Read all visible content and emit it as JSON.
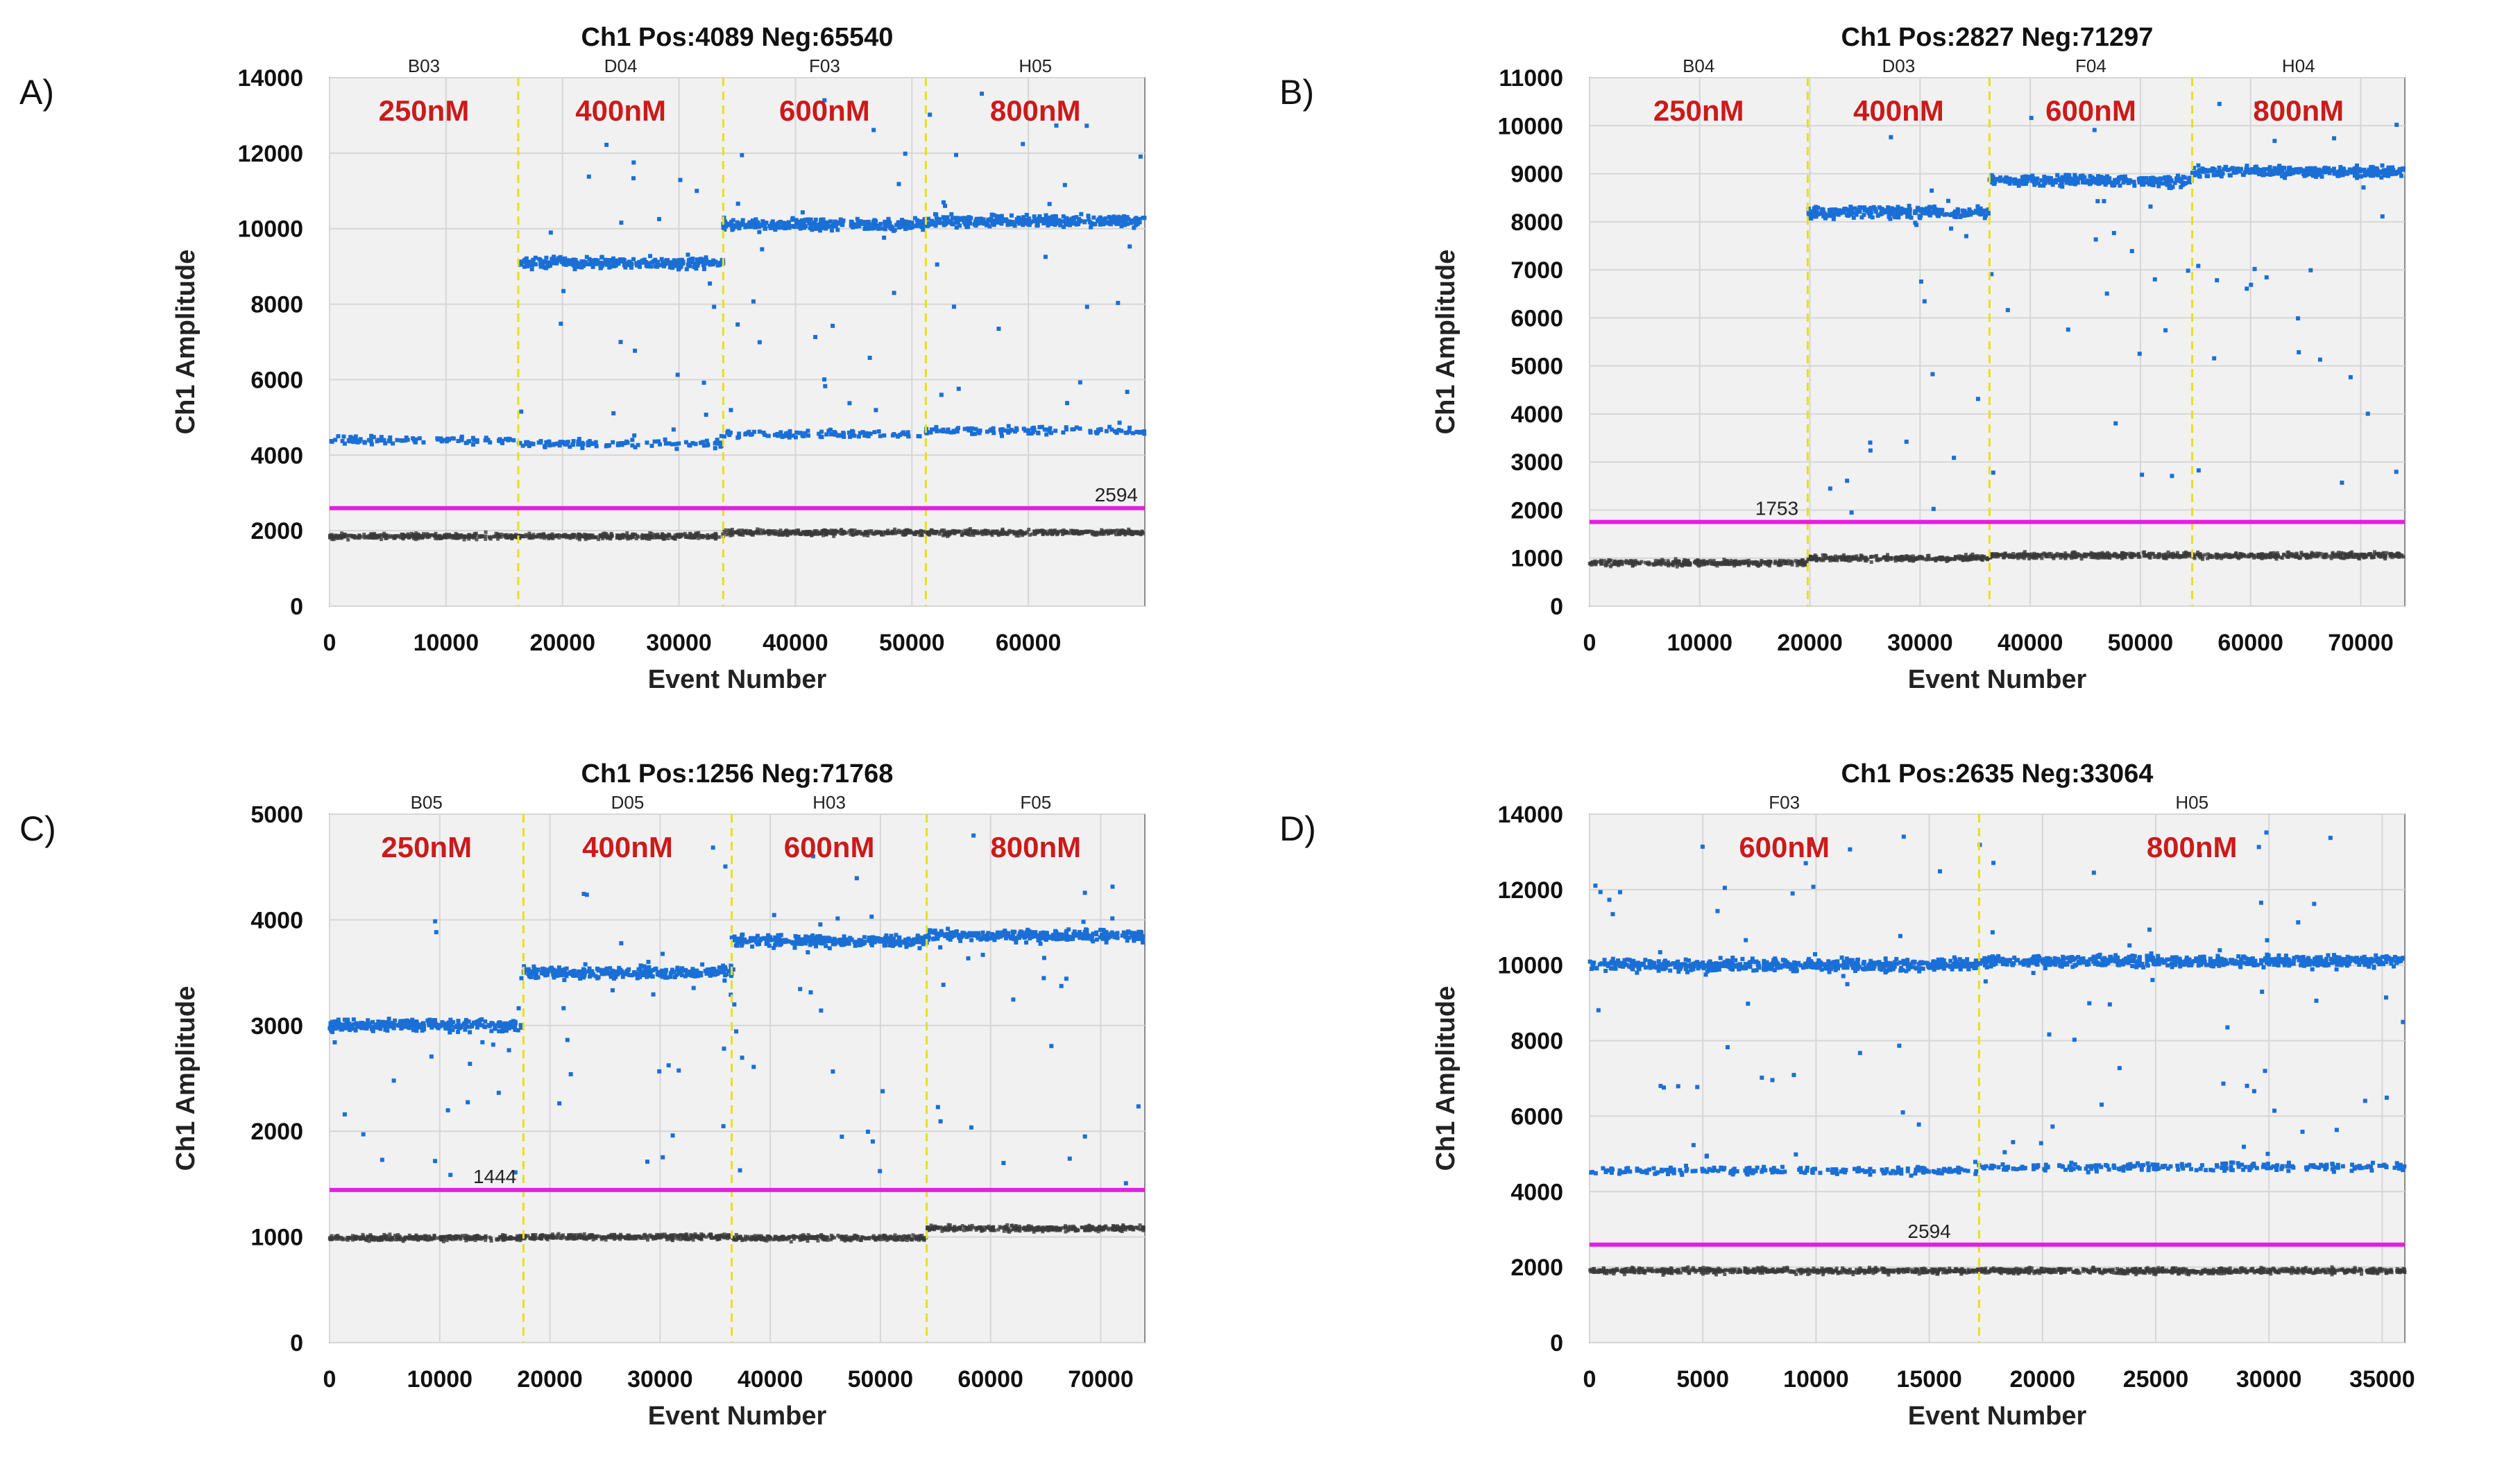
{
  "chart_data": [
    {
      "panel_label": "A)",
      "type": "scatter",
      "title": "Ch1 Pos:4089 Neg:65540",
      "xlabel": "Event Number",
      "ylabel": "Ch1 Amplitude",
      "xlim": [
        0,
        70000
      ],
      "ylim": [
        0,
        14000
      ],
      "xticks": [
        0,
        10000,
        20000,
        30000,
        40000,
        50000,
        60000
      ],
      "yticks": [
        0,
        2000,
        4000,
        6000,
        8000,
        10000,
        12000,
        14000
      ],
      "threshold": 2594,
      "threshold_label": "2594",
      "threshold_label_anchor": "end",
      "threshold_color": "#e020e0",
      "segments": [
        {
          "well": "B03",
          "conc": "250nM",
          "x_start": 0,
          "x_end": 16200,
          "neg": 1850,
          "pos_low": 4400,
          "pos_high": null
        },
        {
          "well": "D04",
          "conc": "400nM",
          "x_start": 16200,
          "x_end": 33800,
          "neg": 1850,
          "pos_low": 4300,
          "pos_high": 9100
        },
        {
          "well": "F03",
          "conc": "600nM",
          "x_start": 33800,
          "x_end": 51200,
          "neg": 1950,
          "pos_low": 4550,
          "pos_high": 10100
        },
        {
          "well": "H05",
          "conc": "800nM",
          "x_start": 51200,
          "x_end": 70000,
          "neg": 1950,
          "pos_low": 4650,
          "pos_high": 10200
        }
      ],
      "colors": {
        "positive": "#1a6fd6",
        "negative": "#3a3a3a"
      }
    },
    {
      "panel_label": "B)",
      "type": "scatter",
      "title": "Ch1 Pos:2827 Neg:71297",
      "xlabel": "Event Number",
      "ylabel": "Ch1 Amplitude",
      "xlim": [
        0,
        74000
      ],
      "ylim": [
        0,
        11000
      ],
      "xticks": [
        0,
        10000,
        20000,
        30000,
        40000,
        50000,
        60000,
        70000
      ],
      "yticks": [
        0,
        1000,
        2000,
        3000,
        4000,
        5000,
        6000,
        7000,
        8000,
        9000,
        10000,
        11000
      ],
      "threshold": 1753,
      "threshold_label": "1753",
      "threshold_label_anchor": "middle",
      "threshold_label_x": 17000,
      "threshold_color": "#e020e0",
      "segments": [
        {
          "well": "B04",
          "conc": "250nM",
          "x_start": 0,
          "x_end": 19800,
          "neg": 900,
          "pos_low": null,
          "pos_high": null
        },
        {
          "well": "D03",
          "conc": "400nM",
          "x_start": 19800,
          "x_end": 36300,
          "neg": 1000,
          "pos_low": null,
          "pos_high": 8200
        },
        {
          "well": "F04",
          "conc": "600nM",
          "x_start": 36300,
          "x_end": 54700,
          "neg": 1050,
          "pos_low": null,
          "pos_high": 8850
        },
        {
          "well": "H04",
          "conc": "800nM",
          "x_start": 54700,
          "x_end": 74000,
          "neg": 1050,
          "pos_low": null,
          "pos_high": 9050
        }
      ],
      "colors": {
        "positive": "#1a6fd6",
        "negative": "#3a3a3a"
      }
    },
    {
      "panel_label": "C)",
      "type": "scatter",
      "title": "Ch1 Pos:1256 Neg:71768",
      "xlabel": "Event Number",
      "ylabel": "Ch1 Amplitude",
      "xlim": [
        0,
        74000
      ],
      "ylim": [
        0,
        5000
      ],
      "xticks": [
        0,
        10000,
        20000,
        30000,
        40000,
        50000,
        60000,
        70000
      ],
      "yticks": [
        0,
        1000,
        2000,
        3000,
        4000,
        5000
      ],
      "threshold": 1444,
      "threshold_label": "1444",
      "threshold_label_anchor": "middle",
      "threshold_label_x": 15000,
      "threshold_color": "#e020e0",
      "segments": [
        {
          "well": "B05",
          "conc": "250nM",
          "x_start": 0,
          "x_end": 17600,
          "neg": 990,
          "pos_low": null,
          "pos_high": 3000
        },
        {
          "well": "D05",
          "conc": "400nM",
          "x_start": 17600,
          "x_end": 36500,
          "neg": 1000,
          "pos_low": null,
          "pos_high": 3500
        },
        {
          "well": "H03",
          "conc": "600nM",
          "x_start": 36500,
          "x_end": 54200,
          "neg": 990,
          "pos_low": null,
          "pos_high": 3800
        },
        {
          "well": "F05",
          "conc": "800nM",
          "x_start": 54200,
          "x_end": 74000,
          "neg": 1080,
          "pos_low": null,
          "pos_high": 3850
        }
      ],
      "colors": {
        "positive": "#1a6fd6",
        "negative": "#3a3a3a"
      }
    },
    {
      "panel_label": "D)",
      "type": "scatter",
      "title": "Ch1 Pos:2635 Neg:33064",
      "xlabel": "Event Number",
      "ylabel": "Ch1 Amplitude",
      "xlim": [
        0,
        36000
      ],
      "ylim": [
        0,
        14000
      ],
      "xticks": [
        0,
        5000,
        10000,
        15000,
        20000,
        25000,
        30000,
        35000
      ],
      "yticks": [
        0,
        2000,
        4000,
        6000,
        8000,
        10000,
        12000,
        14000
      ],
      "threshold": 2594,
      "threshold_label": "2594",
      "threshold_label_anchor": "middle",
      "threshold_label_x": 15000,
      "threshold_color": "#e020e0",
      "segments": [
        {
          "well": "F03",
          "conc": "600nM",
          "x_start": 0,
          "x_end": 17200,
          "neg": 1900,
          "pos_low": 4550,
          "pos_high": 10000
        },
        {
          "well": "H05",
          "conc": "800nM",
          "x_start": 17200,
          "x_end": 36000,
          "neg": 1900,
          "pos_low": 4650,
          "pos_high": 10100
        }
      ],
      "colors": {
        "positive": "#1a6fd6",
        "negative": "#3a3a3a"
      }
    }
  ]
}
